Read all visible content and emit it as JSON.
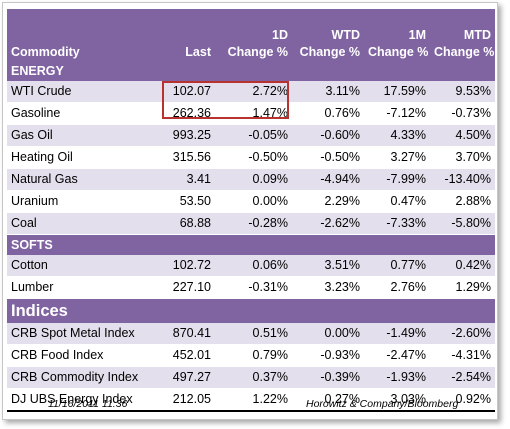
{
  "headers": {
    "commodity": "Commodity",
    "last": "Last",
    "d1_top": "1D",
    "d1_bot": "Change %",
    "wtd_top": "WTD",
    "wtd_bot": "Change %",
    "m1_top": "1M",
    "m1_bot": "Change %",
    "mtd_top": "MTD",
    "mtd_bot": "Change %"
  },
  "sections": [
    {
      "title": "ENERGY",
      "rows": [
        {
          "name": "WTI Crude",
          "last": "102.07",
          "d1": "2.72%",
          "wtd": "3.11%",
          "m1": "17.59%",
          "mtd": "9.53%"
        },
        {
          "name": "Gasoline",
          "last": "262.36",
          "d1": "1.47%",
          "wtd": "0.76%",
          "m1": "-7.12%",
          "mtd": "-0.73%"
        },
        {
          "name": "Gas Oil",
          "last": "993.25",
          "d1": "-0.05%",
          "wtd": "-0.60%",
          "m1": "4.33%",
          "mtd": "4.50%"
        },
        {
          "name": "Heating Oil",
          "last": "315.56",
          "d1": "-0.50%",
          "wtd": "-0.50%",
          "m1": "3.27%",
          "mtd": "3.70%"
        },
        {
          "name": "Natural Gas",
          "last": "3.41",
          "d1": "0.09%",
          "wtd": "-4.94%",
          "m1": "-7.99%",
          "mtd": "-13.40%"
        },
        {
          "name": "Uranium",
          "last": "53.50",
          "d1": "0.00%",
          "wtd": "2.29%",
          "m1": "0.47%",
          "mtd": "2.88%"
        },
        {
          "name": "Coal",
          "last": "68.88",
          "d1": "-0.28%",
          "wtd": "-2.62%",
          "m1": "-7.33%",
          "mtd": "-5.80%"
        }
      ]
    },
    {
      "title": "SOFTS",
      "rows": [
        {
          "name": "Cotton",
          "last": "102.72",
          "d1": "0.06%",
          "wtd": "3.51%",
          "m1": "0.77%",
          "mtd": "0.42%"
        },
        {
          "name": "Lumber",
          "last": "227.10",
          "d1": "-0.31%",
          "wtd": "3.23%",
          "m1": "2.76%",
          "mtd": "1.29%"
        }
      ]
    },
    {
      "title": "Indices",
      "rows": [
        {
          "name": "CRB Spot Metal Index",
          "last": "870.41",
          "d1": "0.51%",
          "wtd": "0.00%",
          "m1": "-1.49%",
          "mtd": "-2.60%"
        },
        {
          "name": "CRB Food Index",
          "last": "452.01",
          "d1": "0.79%",
          "wtd": "-0.93%",
          "m1": "-2.47%",
          "mtd": "-4.31%"
        },
        {
          "name": "CRB Commodity Index",
          "last": "497.27",
          "d1": "0.37%",
          "wtd": "-0.39%",
          "m1": "-1.93%",
          "mtd": "-2.54%"
        },
        {
          "name": "DJ UBS Energy Index",
          "last": "212.05",
          "d1": "1.22%",
          "wtd": "0.27%",
          "m1": "3.03%",
          "mtd": "0.92%"
        }
      ]
    }
  ],
  "footer": {
    "date": "11/16/2011 11:36",
    "source": "Horowitz & Company/Bloomberg"
  },
  "colors": {
    "header_purple": "#8064a2",
    "row_shade": "#e4dfec",
    "highlight_red": "#b83330"
  }
}
